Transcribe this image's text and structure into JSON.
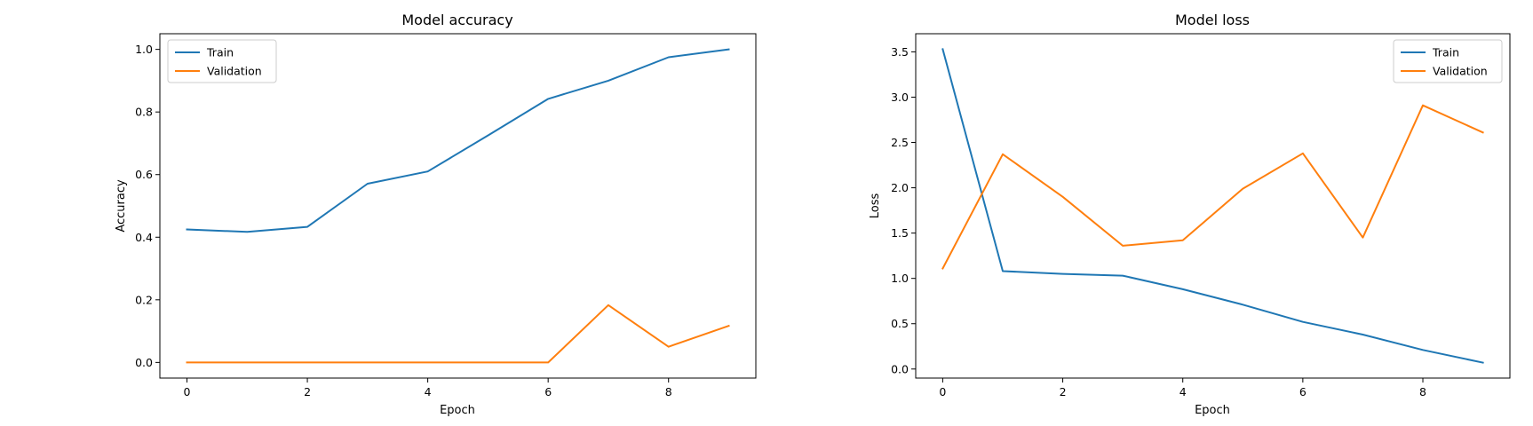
{
  "chart_data": [
    {
      "type": "line",
      "title": "Model accuracy",
      "xlabel": "Epoch",
      "ylabel": "Accuracy",
      "x": [
        0,
        1,
        2,
        3,
        4,
        5,
        6,
        7,
        8,
        9
      ],
      "xlim": [
        -0.45,
        9.45
      ],
      "ylim": [
        -0.05,
        1.05
      ],
      "xticks": [
        0,
        2,
        4,
        6,
        8
      ],
      "xtick_labels": [
        "0",
        "2",
        "4",
        "6",
        "8"
      ],
      "yticks": [
        0.0,
        0.2,
        0.4,
        0.6,
        0.8,
        1.0
      ],
      "ytick_labels": [
        "0.0",
        "0.2",
        "0.4",
        "0.6",
        "0.8",
        "1.0"
      ],
      "grid": false,
      "legend": "upper-left",
      "series": [
        {
          "name": "Train",
          "color": "#1f77b4",
          "values": [
            0.425,
            0.417,
            0.433,
            0.571,
            0.61,
            0.725,
            0.842,
            0.9,
            0.975,
            1.0
          ]
        },
        {
          "name": "Validation",
          "color": "#ff7f0e",
          "values": [
            0.0,
            0.0,
            0.0,
            0.0,
            0.0,
            0.0,
            0.0,
            0.183,
            0.05,
            0.117
          ]
        }
      ]
    },
    {
      "type": "line",
      "title": "Model loss",
      "xlabel": "Epoch",
      "ylabel": "Loss",
      "x": [
        0,
        1,
        2,
        3,
        4,
        5,
        6,
        7,
        8,
        9
      ],
      "xlim": [
        -0.45,
        9.45
      ],
      "ylim": [
        -0.1,
        3.7
      ],
      "xticks": [
        0,
        2,
        4,
        6,
        8
      ],
      "xtick_labels": [
        "0",
        "2",
        "4",
        "6",
        "8"
      ],
      "yticks": [
        0.0,
        0.5,
        1.0,
        1.5,
        2.0,
        2.5,
        3.0,
        3.5
      ],
      "ytick_labels": [
        "0.0",
        "0.5",
        "1.0",
        "1.5",
        "2.0",
        "2.5",
        "3.0",
        "3.5"
      ],
      "grid": false,
      "legend": "upper-right",
      "series": [
        {
          "name": "Train",
          "color": "#1f77b4",
          "values": [
            3.53,
            1.08,
            1.05,
            1.03,
            0.88,
            0.71,
            0.52,
            0.38,
            0.21,
            0.07
          ]
        },
        {
          "name": "Validation",
          "color": "#ff7f0e",
          "values": [
            1.11,
            2.37,
            1.9,
            1.36,
            1.42,
            1.99,
            2.38,
            1.45,
            2.91,
            2.61
          ]
        }
      ]
    }
  ]
}
